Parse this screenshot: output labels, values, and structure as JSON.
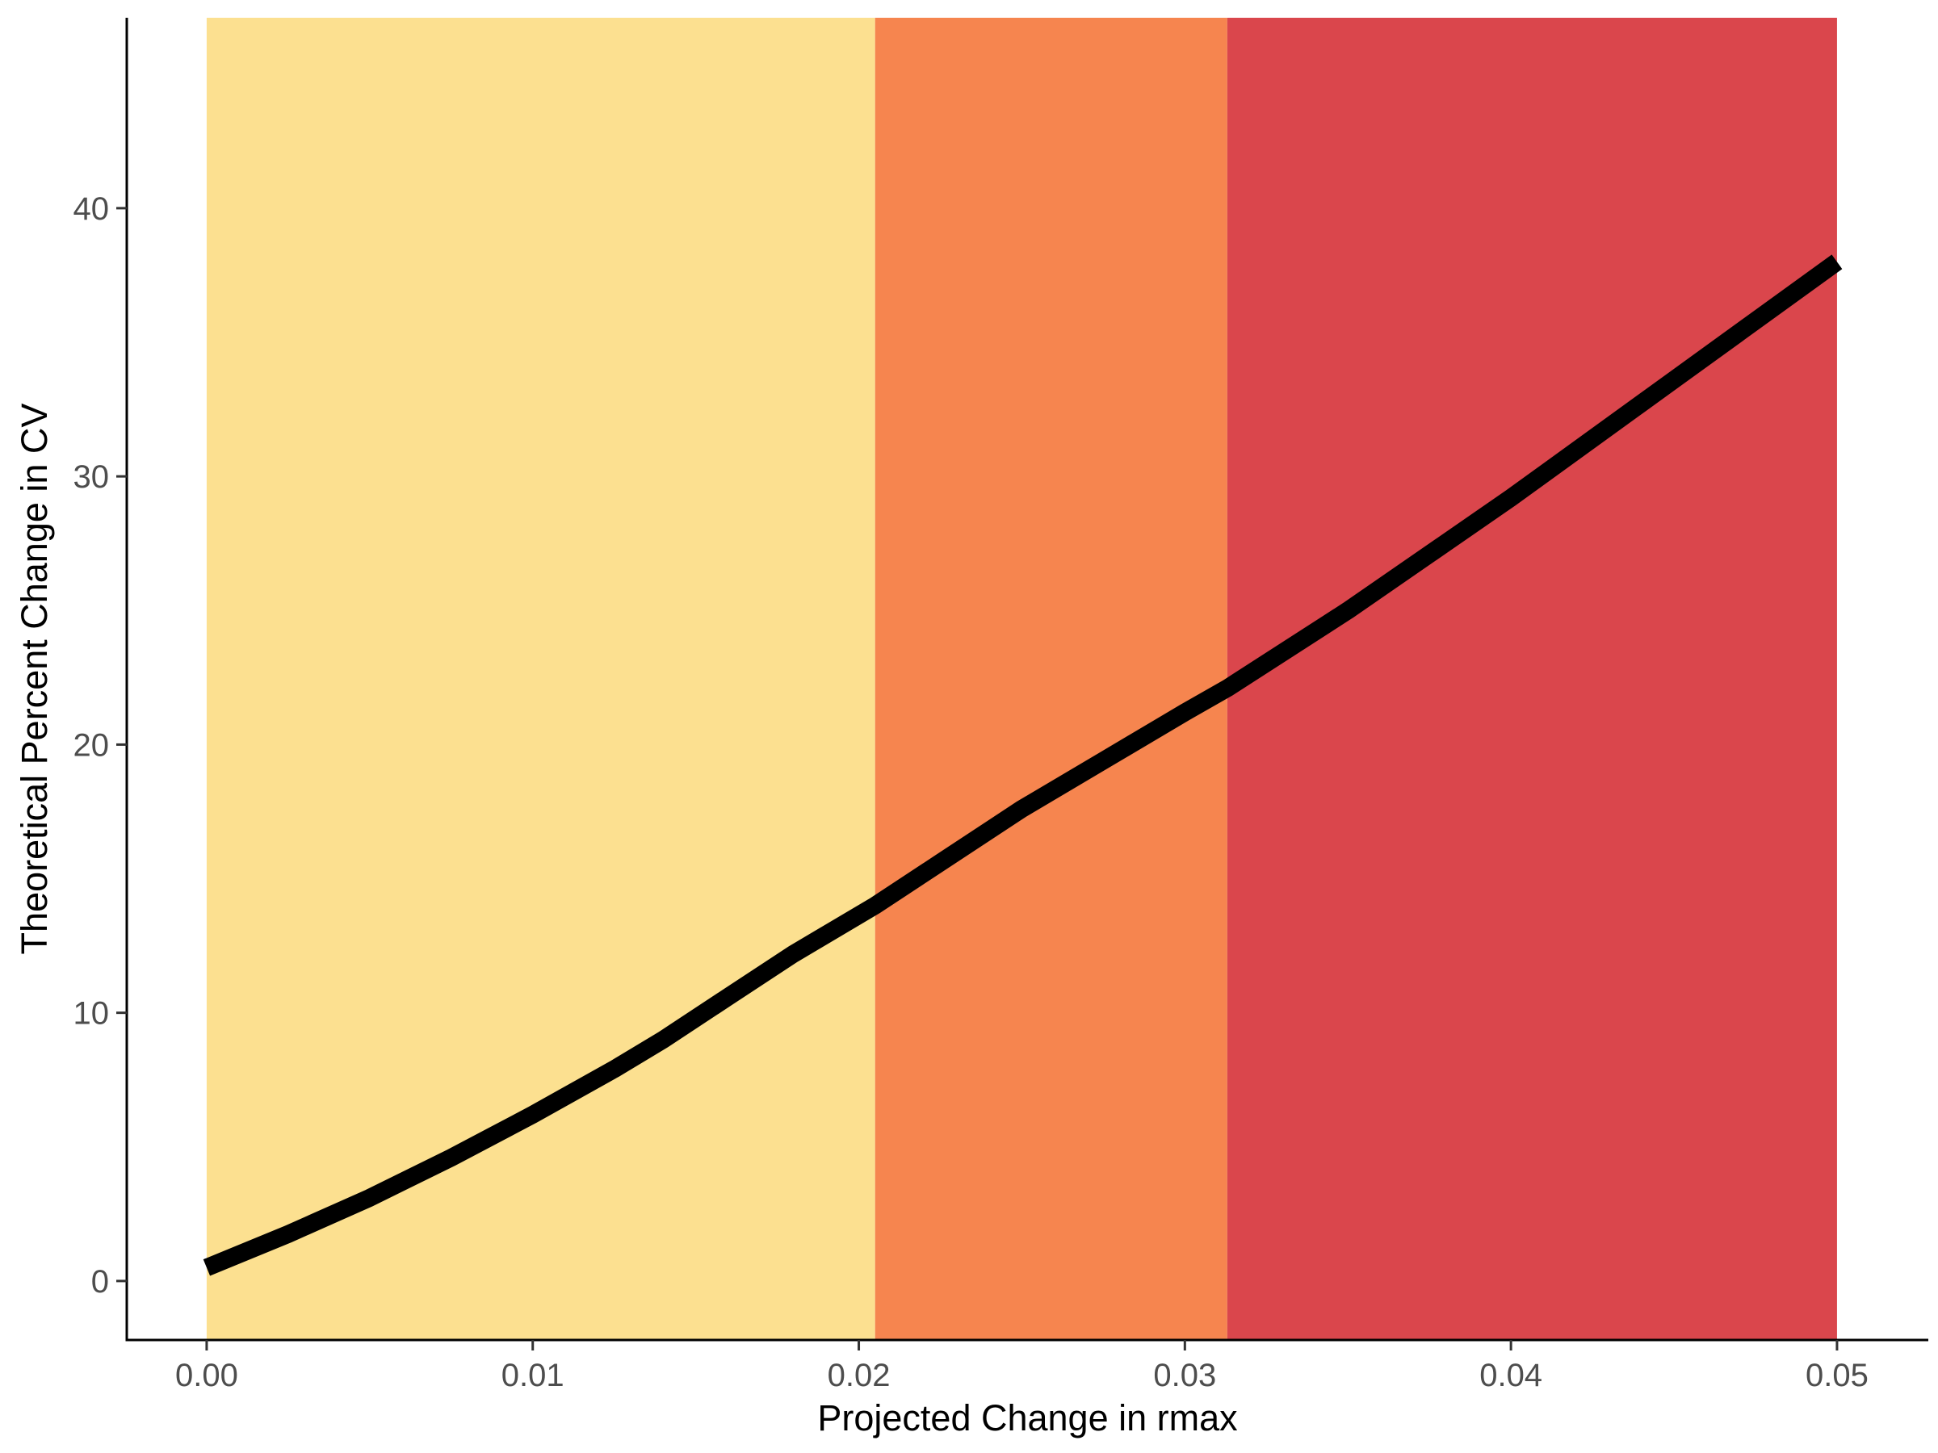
{
  "chart_data": {
    "type": "line",
    "title": "",
    "xlabel": "Projected Change in rmax",
    "ylabel": "Theoretical Percent Change in CV",
    "xlim": [
      -0.00245,
      0.0528
    ],
    "ylim": [
      -2.2,
      47.1
    ],
    "x_ticks": [
      0.0,
      0.01,
      0.02,
      0.03,
      0.04,
      0.05
    ],
    "x_tick_labels": [
      "0.00",
      "0.01",
      "0.02",
      "0.03",
      "0.04",
      "0.05"
    ],
    "y_ticks": [
      0,
      10,
      20,
      30,
      40
    ],
    "y_tick_labels": [
      "0",
      "10",
      "20",
      "30",
      "40"
    ],
    "grid": false,
    "bands": [
      {
        "x_start": 0.0,
        "x_end": 0.0205,
        "color": "#FCE090"
      },
      {
        "x_start": 0.0205,
        "x_end": 0.0313,
        "color": "#F6854F"
      },
      {
        "x_start": 0.0313,
        "x_end": 0.05,
        "color": "#DA464C"
      }
    ],
    "series": [
      {
        "color": "#000000",
        "x": [
          0.0,
          0.0025,
          0.005,
          0.0075,
          0.01,
          0.0125,
          0.014,
          0.016,
          0.018,
          0.0205,
          0.0225,
          0.025,
          0.0275,
          0.03,
          0.0313,
          0.035,
          0.04,
          0.045,
          0.05
        ],
        "y": [
          0.5,
          1.75,
          3.1,
          4.6,
          6.2,
          7.9,
          9.0,
          10.6,
          12.2,
          14.0,
          15.6,
          17.6,
          19.4,
          21.2,
          22.1,
          25.0,
          29.2,
          33.6,
          38.0
        ]
      }
    ]
  }
}
